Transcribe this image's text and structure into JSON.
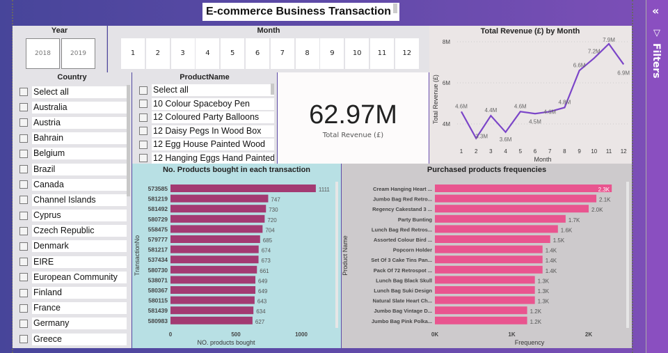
{
  "title": "E-commerce Business Transaction",
  "filters_pane": {
    "label": "Filters",
    "icons": [
      "collapse-icon",
      "filter-icon"
    ]
  },
  "year_slicer": {
    "label": "Year",
    "options": [
      "2018",
      "2019"
    ]
  },
  "month_slicer": {
    "label": "Month",
    "options": [
      "1",
      "2",
      "3",
      "4",
      "5",
      "6",
      "7",
      "8",
      "9",
      "10",
      "11",
      "12"
    ]
  },
  "country_slicer": {
    "label": "Country",
    "items": [
      "Select all",
      "Australia",
      "Austria",
      "Bahrain",
      "Belgium",
      "Brazil",
      "Canada",
      "Channel Islands",
      "Cyprus",
      "Czech Republic",
      "Denmark",
      "EIRE",
      "European Community",
      "Finland",
      "France",
      "Germany",
      "Greece"
    ]
  },
  "product_slicer": {
    "label": "ProductName",
    "items": [
      "Select all",
      "10 Colour Spaceboy Pen",
      "12 Coloured Party Balloons",
      "12 Daisy Pegs In Wood Box",
      "12 Egg House Painted Wood",
      "12 Hanging Eggs Hand Painted"
    ]
  },
  "card": {
    "value": "62.97M",
    "label": "Total Revenue (£)"
  },
  "chart_data": [
    {
      "type": "line",
      "title": "Total Revenue (£) by Month",
      "xlabel": "Month",
      "ylabel": "Total Revenue (£)",
      "categories": [
        "1",
        "2",
        "3",
        "4",
        "5",
        "6",
        "7",
        "8",
        "9",
        "10",
        "11",
        "12"
      ],
      "values": [
        4.6,
        3.3,
        4.4,
        3.6,
        4.6,
        4.5,
        4.6,
        4.8,
        6.6,
        7.2,
        7.9,
        6.9
      ],
      "data_labels": [
        "4.6M",
        "3.3M",
        "4.4M",
        "3.6M",
        "4.6M",
        "4.5M",
        "4.6M",
        "4.8M",
        "6.6M",
        "7.2M",
        "7.9M",
        "6.9M"
      ],
      "yticks": [
        "4M",
        "6M",
        "8M"
      ],
      "unit": "M",
      "color": "#7b45c8",
      "grid": true
    },
    {
      "type": "bar",
      "orientation": "horizontal",
      "title": "No. Products bought in each transaction",
      "xlabel": "NO. products bought",
      "ylabel": "TransactionNo",
      "categories": [
        "573585",
        "581219",
        "581492",
        "580729",
        "558475",
        "579777",
        "581217",
        "537434",
        "580730",
        "538071",
        "580367",
        "580115",
        "581439",
        "580983"
      ],
      "values": [
        1111,
        747,
        730,
        720,
        704,
        685,
        674,
        673,
        661,
        649,
        649,
        643,
        634,
        627
      ],
      "xticks": [
        "0",
        "500",
        "1000"
      ],
      "color": "#a33a72"
    },
    {
      "type": "bar",
      "orientation": "horizontal",
      "title": "Purchased products frequencies",
      "xlabel": "Frequency",
      "ylabel": "Product Name",
      "categories": [
        "Cream Hanging Heart ...",
        "Jumbo Bag Red Retro...",
        "Regency Cakestand 3 ...",
        "Party Bunting",
        "Lunch Bag Red Retros...",
        "Assorted Colour Bird ...",
        "Popcorn Holder",
        "Set Of 3 Cake Tins Pan...",
        "Pack Of 72 Retrospot ...",
        "Lunch Bag Black Skull",
        "Lunch Bag Suki Design",
        "Natural Slate Heart Ch...",
        "Jumbo Bag Vintage D...",
        "Jumbo Bag Pink Polka..."
      ],
      "values": [
        2.3,
        2.1,
        2.0,
        1.7,
        1.6,
        1.5,
        1.4,
        1.4,
        1.4,
        1.3,
        1.3,
        1.3,
        1.2,
        1.2
      ],
      "data_labels": [
        "2.3K",
        "2.1K",
        "2.0K",
        "1.7K",
        "1.6K",
        "1.5K",
        "1.4K",
        "1.4K",
        "1.4K",
        "1.3K",
        "1.3K",
        "1.3K",
        "1.2K",
        "1.2K"
      ],
      "xticks": [
        "0K",
        "1K",
        "2K"
      ],
      "color": "#e9558f"
    }
  ]
}
